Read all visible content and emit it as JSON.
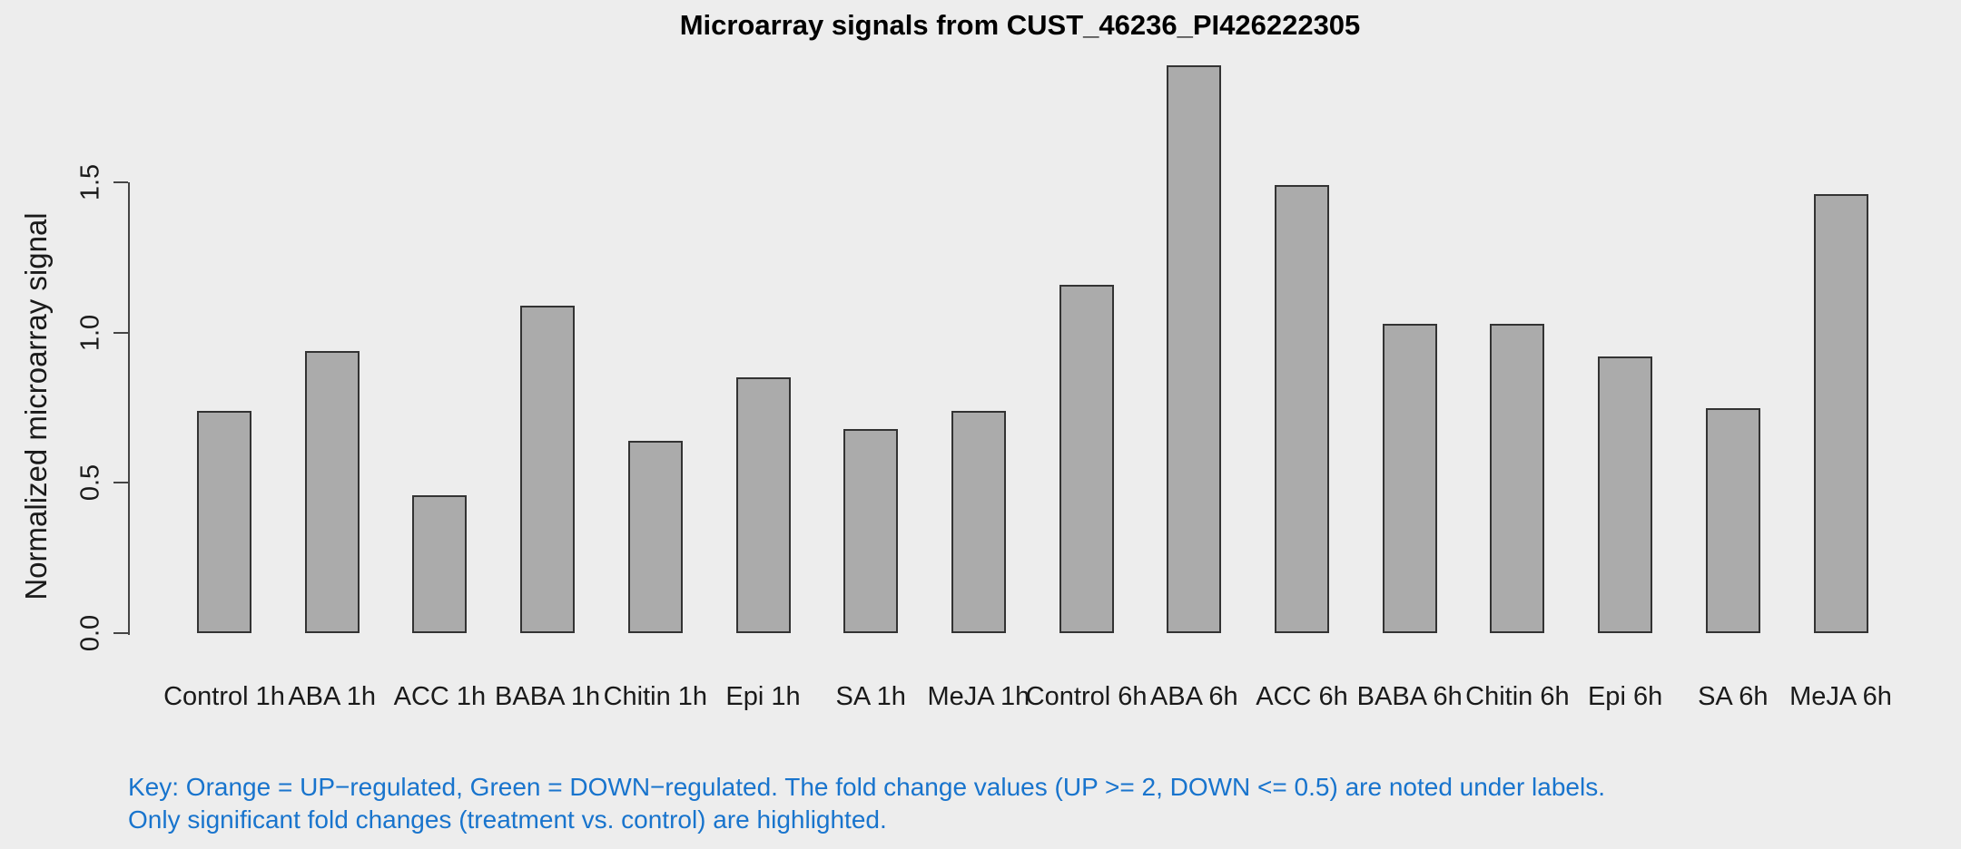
{
  "chart_data": {
    "type": "bar",
    "title": "Microarray signals from CUST_46236_PI426222305",
    "ylabel": "Normalized microarray signal",
    "xlabel": "",
    "categories": [
      "Control 1h",
      "ABA 1h",
      "ACC 1h",
      "BABA 1h",
      "Chitin 1h",
      "Epi 1h",
      "SA 1h",
      "MeJA 1h",
      "Control 6h",
      "ABA 6h",
      "ACC 6h",
      "BABA 6h",
      "Chitin 6h",
      "Epi 6h",
      "SA 6h",
      "MeJA 6h"
    ],
    "values": [
      0.74,
      0.94,
      0.46,
      1.09,
      0.64,
      0.85,
      0.68,
      0.74,
      1.16,
      1.89,
      1.49,
      1.03,
      1.03,
      0.92,
      0.75,
      1.46
    ],
    "yticks": [
      {
        "value": 0.0,
        "label": "0.0"
      },
      {
        "value": 0.5,
        "label": "0.5"
      },
      {
        "value": 1.0,
        "label": "1.0"
      },
      {
        "value": 1.5,
        "label": "1.5"
      }
    ],
    "ylim": [
      0,
      1.9
    ],
    "grid": false,
    "legend_position": "none",
    "bar_fill": "#ABABAB",
    "bar_border": "#333333"
  },
  "annotations": {
    "key_line1": "Key: Orange = UP−regulated, Green = DOWN−regulated. The fold change values (UP >= 2, DOWN <= 0.5) are noted under labels.",
    "key_line2": "Only significant fold changes (treatment vs. control) are highlighted."
  },
  "colors": {
    "background": "#EDEDED",
    "key_text": "#1874CD",
    "axis": "#444444",
    "text": "#1A1A1A"
  }
}
